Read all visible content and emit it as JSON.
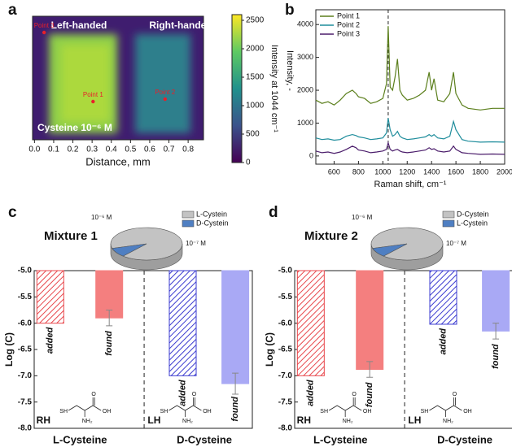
{
  "chart_data": [
    {
      "type": "heatmap",
      "panel": "a",
      "xlabel": "Distance, mm",
      "xlim": [
        -0.01,
        0.88
      ],
      "xticks": [
        {
          "value": 0,
          "label": "0.0"
        },
        0.1,
        0.2,
        0.3,
        0.4,
        0.5,
        0.6,
        0.7,
        0.8
      ],
      "annotations": [
        "Left-handed",
        "Right-handed",
        "Cysteine 10⁻⁶ M"
      ],
      "points": [
        {
          "label": "Point 1",
          "x": 0.305
        },
        {
          "label": "Point 2",
          "x": 0.68
        },
        {
          "label": "Point 3",
          "x": 0.05
        }
      ],
      "colorbar": {
        "label": "Intensity at 1044 cm⁻¹",
        "lim": [
          0,
          2600
        ],
        "ticks": [
          0,
          500,
          1000,
          1500,
          2000,
          2500
        ]
      }
    },
    {
      "type": "line",
      "panel": "b",
      "xlabel": "Raman shift, cm⁻¹",
      "ylabel": "Intensity, -",
      "xlim": [
        450,
        2000
      ],
      "ylim": [
        -250,
        4450
      ],
      "xticks": [
        600,
        800,
        1000,
        1200,
        1400,
        1600,
        1800,
        2000
      ],
      "yticks": [
        0,
        1000,
        2000,
        3000,
        4000
      ],
      "reference_line_x": 1044,
      "x": [
        450,
        500,
        550,
        600,
        650,
        700,
        750,
        780,
        800,
        850,
        900,
        950,
        1000,
        1030,
        1044,
        1060,
        1080,
        1100,
        1120,
        1140,
        1160,
        1200,
        1250,
        1300,
        1350,
        1380,
        1400,
        1420,
        1450,
        1500,
        1550,
        1580,
        1600,
        1650,
        1700,
        1800,
        1900,
        2000
      ],
      "series": [
        {
          "name": "Point 1",
          "color": "#5b7f1c",
          "values": [
            1700,
            1600,
            1650,
            1550,
            1700,
            1900,
            2000,
            1900,
            1800,
            1750,
            1600,
            1650,
            1750,
            2200,
            3950,
            2100,
            2000,
            2400,
            2950,
            2000,
            1850,
            1700,
            1750,
            1850,
            2000,
            2550,
            2000,
            2350,
            1700,
            1650,
            1900,
            2550,
            1900,
            1550,
            1450,
            1400,
            1450,
            1450
          ]
        },
        {
          "name": "Point 2",
          "color": "#1f8d9c",
          "values": [
            550,
            500,
            520,
            480,
            500,
            600,
            650,
            620,
            580,
            550,
            500,
            520,
            550,
            700,
            1150,
            800,
            600,
            650,
            750,
            600,
            550,
            500,
            520,
            550,
            580,
            650,
            600,
            650,
            550,
            520,
            600,
            1050,
            800,
            500,
            450,
            420,
            430,
            420
          ]
        },
        {
          "name": "Point 3",
          "color": "#4b1d6b",
          "values": [
            150,
            100,
            120,
            80,
            120,
            200,
            300,
            250,
            180,
            150,
            100,
            120,
            150,
            200,
            400,
            200,
            150,
            180,
            200,
            150,
            120,
            100,
            120,
            150,
            180,
            250,
            200,
            220,
            150,
            120,
            150,
            300,
            200,
            100,
            80,
            50,
            60,
            50
          ]
        }
      ]
    },
    {
      "type": "bar",
      "panel": "c",
      "title": "Mixture 1",
      "ylabel": "Log (C)",
      "ylim": [
        -5,
        -8
      ],
      "yticks": [
        {
          "value": -5,
          "label": "-5.0"
        },
        {
          "value": -5.5,
          "label": "-5.5"
        },
        {
          "value": -6,
          "label": "-6.0"
        },
        {
          "value": -6.5,
          "label": "-6.5"
        },
        {
          "value": -7,
          "label": "-7.0"
        },
        {
          "value": -7.5,
          "label": "-7.5"
        },
        {
          "value": -8,
          "label": "-8.0"
        }
      ],
      "categories": [
        "added",
        "found",
        "added",
        "found"
      ],
      "values": [
        -6.0,
        -5.9,
        -7.0,
        -7.15
      ],
      "errors": [
        null,
        0.15,
        null,
        0.2
      ],
      "colors": [
        "#e8474c",
        "#f47f7f",
        "#3b3bd0",
        "#a9a9f5"
      ],
      "hatched": [
        true,
        false,
        true,
        false
      ],
      "groups": [
        {
          "label": "L-Cysteine",
          "tag": "RH"
        },
        {
          "label": "D-Cysteine",
          "tag": "LH"
        }
      ],
      "structure_labels": [
        "SH",
        "NH₂",
        "OH",
        "O"
      ],
      "inset": {
        "type": "pie",
        "labels": [
          "L-Cystein",
          "D-Cystein"
        ],
        "values": [
          1e-06,
          1e-07
        ],
        "value_labels": [
          "10⁻⁶ M",
          "10⁻⁷ M"
        ],
        "colors": [
          "#c3c3c3",
          "#4f7fc2"
        ]
      }
    },
    {
      "type": "bar",
      "panel": "d",
      "title": "Mixture 2",
      "ylabel": "Log (C)",
      "ylim": [
        -5,
        -8
      ],
      "yticks": [
        {
          "value": -5,
          "label": "-5.0"
        },
        {
          "value": -5.5,
          "label": "-5.5"
        },
        {
          "value": -6,
          "label": "-6.0"
        },
        {
          "value": -6.5,
          "label": "-6.5"
        },
        {
          "value": -7,
          "label": "-7.0"
        },
        {
          "value": -7.5,
          "label": "-7.5"
        },
        {
          "value": -8,
          "label": "-8.0"
        }
      ],
      "categories": [
        "added",
        "found",
        "added",
        "found"
      ],
      "values": [
        -7.0,
        -6.88,
        -6.02,
        -6.15
      ],
      "errors": [
        null,
        0.15,
        null,
        0.15
      ],
      "colors": [
        "#e8474c",
        "#f47f7f",
        "#3b3bd0",
        "#a9a9f5"
      ],
      "hatched": [
        true,
        false,
        true,
        false
      ],
      "groups": [
        {
          "label": "L-Cysteine",
          "tag": "RH"
        },
        {
          "label": "D-Cysteine",
          "tag": "LH"
        }
      ],
      "structure_labels": [
        "SH",
        "NH₂",
        "OH",
        "O"
      ],
      "inset": {
        "type": "pie",
        "labels": [
          "D-Cystein",
          "L-Cystein"
        ],
        "values": [
          1e-06,
          1e-07
        ],
        "value_labels": [
          "10⁻⁶ M",
          "10⁻⁷ M"
        ],
        "colors": [
          "#c3c3c3",
          "#4f7fc2"
        ]
      }
    }
  ]
}
